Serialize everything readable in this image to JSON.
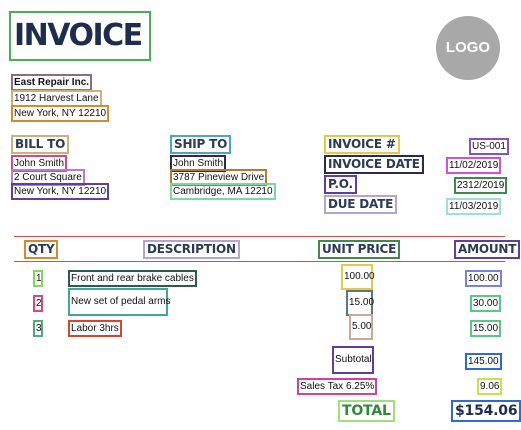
{
  "invoice": {
    "title": "INVOICE",
    "logo_text": "LOGO",
    "company": {
      "name": "East Repair Inc.",
      "street": "1912 Harvest Lane",
      "city": "New York, NY 12210"
    },
    "bill_to": {
      "label": "BILL TO",
      "name": "John Smith",
      "street": "2 Court Square",
      "city": "New York, NY 12210"
    },
    "ship_to": {
      "label": "SHIP TO",
      "name": "John Smith",
      "street": "3787 Pineview Drive",
      "city": "Cambridge, MA 12210"
    },
    "meta": {
      "invoice_no_label": "INVOICE #",
      "invoice_no": "US-001",
      "invoice_date_label": "INVOICE DATE",
      "invoice_date": "11/02/2019",
      "po_label": "P.O.",
      "po": "2312/2019",
      "due_date_label": "DUE DATE",
      "due_date": "11/03/2019"
    },
    "columns": {
      "qty": "QTY",
      "description": "DESCRIPTION",
      "unit_price": "UNIT PRICE",
      "amount": "AMOUNT"
    },
    "items": [
      {
        "qty": "1",
        "description": "Front and rear brake cables",
        "unit_price": "100.00",
        "amount": "100.00"
      },
      {
        "qty": "2",
        "description": "New set of pedal arms",
        "unit_price": "15.00",
        "amount": "30.00"
      },
      {
        "qty": "3",
        "description": "Labor 3hrs",
        "unit_price": "5.00",
        "amount": "15.00"
      }
    ],
    "totals": {
      "subtotal_label": "Subtotal",
      "subtotal": "145.00",
      "tax_label": "Sales Tax 6.25%",
      "tax": "9.06",
      "total_label": "TOTAL",
      "total": "$154.06"
    }
  }
}
